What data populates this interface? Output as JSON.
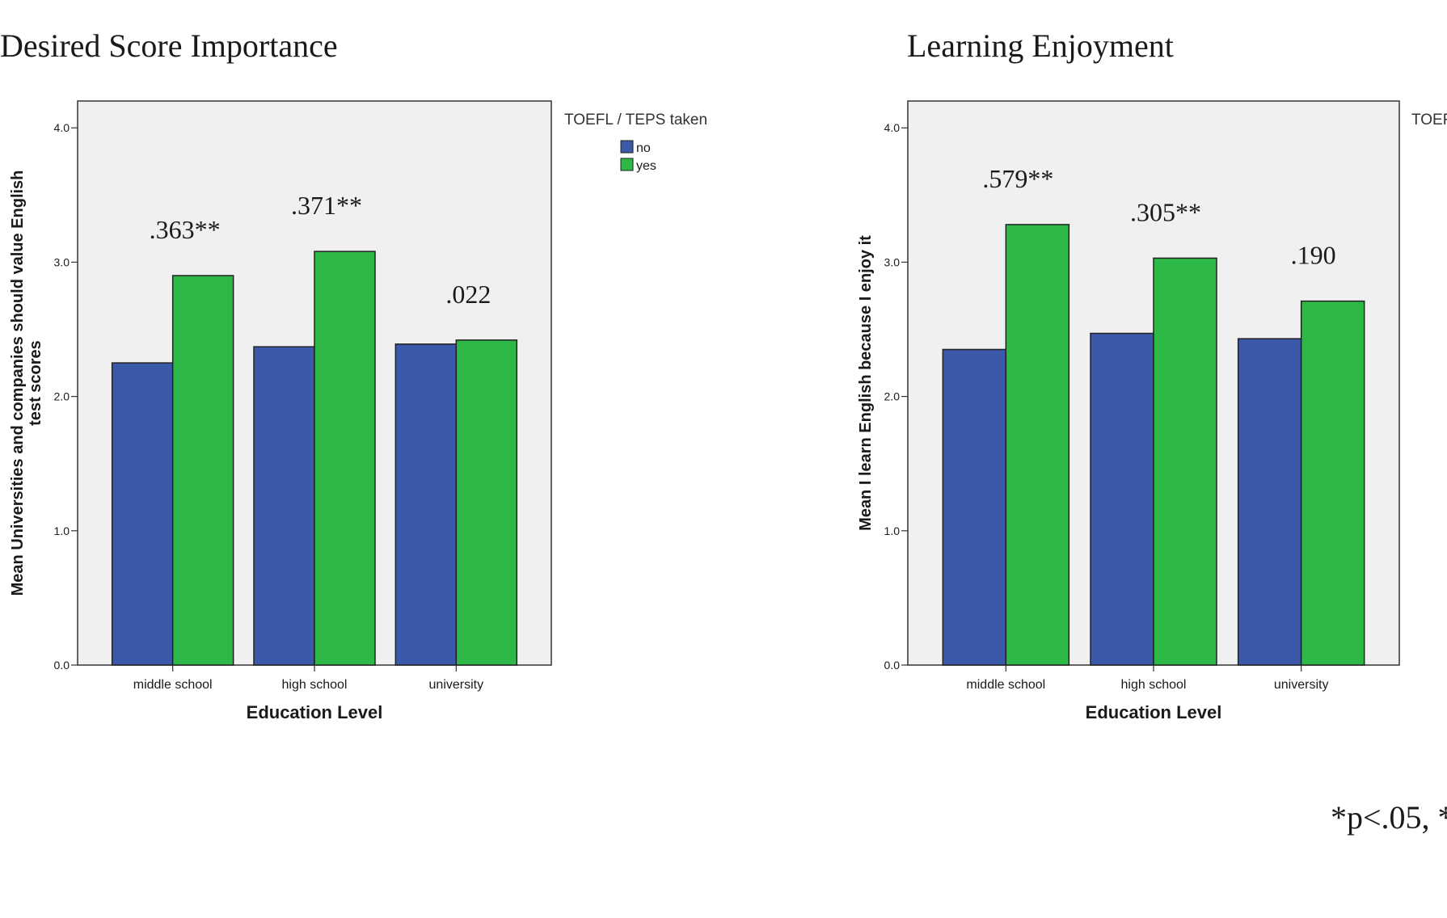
{
  "colors": {
    "no": "#3c58a8",
    "yes": "#2eb848",
    "plot_bg": "#f0f0f0",
    "frame": "#333333",
    "text": "#1a1a1a"
  },
  "footnote": "*p<.05, *",
  "chart_data": [
    {
      "type": "bar",
      "title": "Desired Score Importance",
      "xlabel": "Education Level",
      "ylabel": "Mean Universities and companies should value English test scores",
      "ylabel_lines": [
        "Mean Universities and companies should value English",
        "test scores"
      ],
      "ylim": [
        0,
        4.2
      ],
      "yticks": [
        "0.0",
        "1.0",
        "2.0",
        "3.0",
        "4.0"
      ],
      "categories": [
        "middle school",
        "high school",
        "university"
      ],
      "series": [
        {
          "name": "no",
          "values": [
            2.25,
            2.37,
            2.39
          ]
        },
        {
          "name": "yes",
          "values": [
            2.9,
            3.08,
            2.42
          ]
        }
      ],
      "annotations": [
        ".363**",
        ".371**",
        ".022"
      ],
      "legend": {
        "title": "TOEFL / TEPS taken",
        "placement": "right",
        "entries": [
          "no",
          "yes"
        ]
      },
      "grid": false
    },
    {
      "type": "bar",
      "title": "Learning Enjoyment",
      "xlabel": "Education Level",
      "ylabel": "Mean I learn English because I enjoy it",
      "ylabel_lines": [
        "Mean I learn English because I enjoy it"
      ],
      "ylim": [
        0,
        4.2
      ],
      "yticks": [
        "0.0",
        "1.0",
        "2.0",
        "3.0",
        "4.0"
      ],
      "categories": [
        "middle school",
        "high school",
        "university"
      ],
      "series": [
        {
          "name": "no",
          "values": [
            2.35,
            2.47,
            2.43
          ]
        },
        {
          "name": "yes",
          "values": [
            3.28,
            3.03,
            2.71
          ]
        }
      ],
      "annotations": [
        ".579**",
        ".305**",
        ".190"
      ],
      "legend": {
        "title": "TOEF",
        "placement": "right",
        "entries": []
      },
      "grid": false
    }
  ]
}
